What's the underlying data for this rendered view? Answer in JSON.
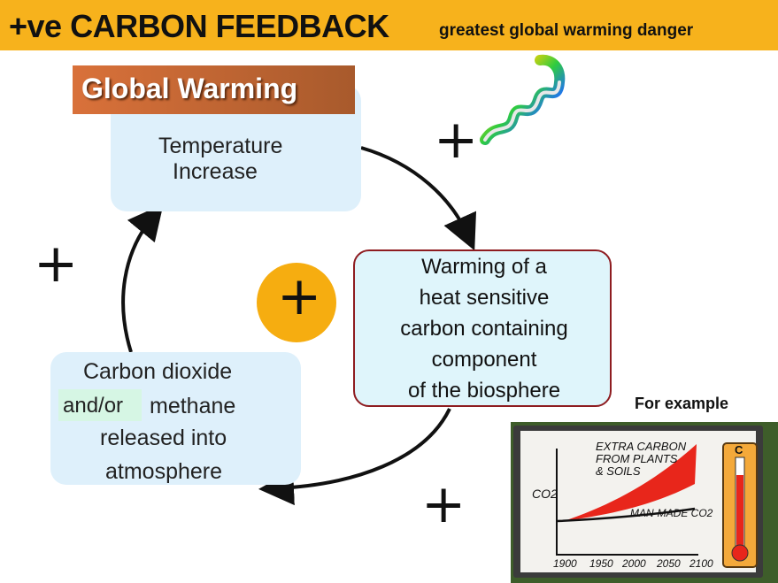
{
  "header": {
    "title": "+ve CARBON FEEDBACK",
    "subtitle": "greatest global warming danger",
    "background_color": "#f7b21c"
  },
  "global_warming": {
    "banner": "Global Warming",
    "lines": [
      "Temperature",
      "Increase"
    ]
  },
  "warming_box": {
    "lines": [
      "Warming of a",
      "heat sensitive",
      "carbon containing",
      "component",
      "of the biosphere"
    ],
    "border_color": "#8e1c20"
  },
  "co2_box": {
    "line1": "Carbon dioxide",
    "and_or": "and/or",
    "methane": "methane",
    "line3": "released into",
    "line4": "atmosphere"
  },
  "plus_signs": {
    "top_right": "+",
    "left": "+",
    "bottom_right": "+",
    "center": "+"
  },
  "center_circle_color": "#f6ad10",
  "example": {
    "label": "For example",
    "cartoon": {
      "annotation": [
        "EXTRA CARBON",
        "FROM PLANTS",
        "& SOILS"
      ],
      "ylabel": "CO2",
      "series_label": "MAN-MADE CO2",
      "x_ticks": [
        "1900",
        "1950",
        "2000",
        "2050",
        "2100"
      ],
      "thermometer_label": "C"
    }
  },
  "icons": {
    "spiral": "rainbow-spiral-icon",
    "thermometer": "thermometer-icon"
  }
}
